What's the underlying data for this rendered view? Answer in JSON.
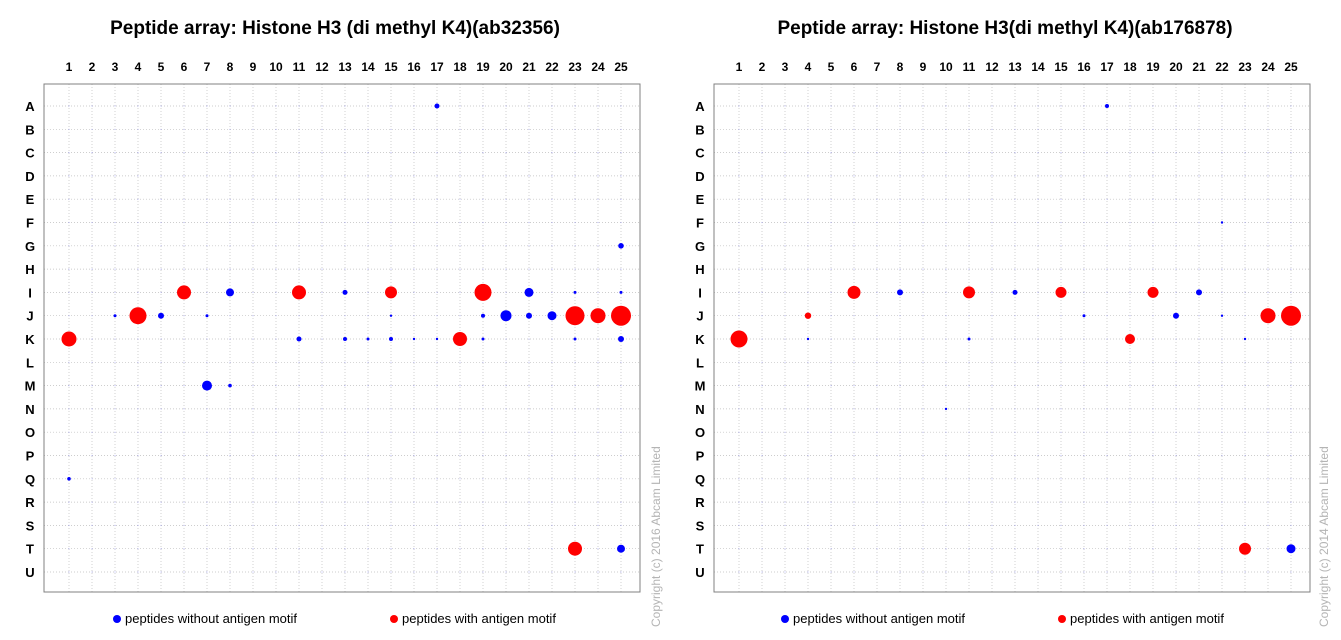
{
  "legend": {
    "without": "peptides without antigen motif",
    "with": "peptides with antigen motif"
  },
  "colors": {
    "without": "#0000ff",
    "with": "#ff0000",
    "grid": "#bdbdbd"
  },
  "copyrights": [
    "Copyright (c) 2016 Abcam Limited",
    "Copyright (c) 2014 Abcam Limited"
  ],
  "chart_data": [
    {
      "type": "scatter",
      "title": "Peptide array: Histone H3 (di methyl K4)(ab32356)",
      "x": [
        "1",
        "2",
        "3",
        "4",
        "5",
        "6",
        "7",
        "8",
        "9",
        "10",
        "11",
        "12",
        "13",
        "14",
        "15",
        "16",
        "17",
        "18",
        "19",
        "20",
        "21",
        "22",
        "23",
        "24",
        "25"
      ],
      "y": [
        "A",
        "B",
        "C",
        "D",
        "E",
        "F",
        "G",
        "H",
        "I",
        "J",
        "K",
        "L",
        "M",
        "N",
        "O",
        "P",
        "Q",
        "R",
        "S",
        "T",
        "U"
      ],
      "grid": true,
      "legend_position": "bottom",
      "series": [
        {
          "name": "peptides without antigen motif",
          "points": [
            {
              "col": 17,
              "row": "A",
              "size": 2.5
            },
            {
              "col": 8,
              "row": "I",
              "size": 4
            },
            {
              "col": 13,
              "row": "I",
              "size": 2.5
            },
            {
              "col": 21,
              "row": "I",
              "size": 4.5
            },
            {
              "col": 25,
              "row": "I",
              "size": 1.5
            },
            {
              "col": 23,
              "row": "I",
              "size": 1.5
            },
            {
              "col": 3,
              "row": "J",
              "size": 1.5
            },
            {
              "col": 5,
              "row": "J",
              "size": 3
            },
            {
              "col": 7,
              "row": "J",
              "size": 1.5
            },
            {
              "col": 19,
              "row": "J",
              "size": 2
            },
            {
              "col": 20,
              "row": "J",
              "size": 5.5
            },
            {
              "col": 21,
              "row": "J",
              "size": 3
            },
            {
              "col": 22,
              "row": "J",
              "size": 4.5
            },
            {
              "col": 15,
              "row": "J",
              "size": 1.2
            },
            {
              "col": 11,
              "row": "K",
              "size": 2.5
            },
            {
              "col": 13,
              "row": "K",
              "size": 2
            },
            {
              "col": 14,
              "row": "K",
              "size": 1.5
            },
            {
              "col": 15,
              "row": "K",
              "size": 2
            },
            {
              "col": 16,
              "row": "K",
              "size": 1.2
            },
            {
              "col": 17,
              "row": "K",
              "size": 1.2
            },
            {
              "col": 19,
              "row": "K",
              "size": 1.5
            },
            {
              "col": 23,
              "row": "K",
              "size": 1.5
            },
            {
              "col": 25,
              "row": "K",
              "size": 3
            },
            {
              "col": 7,
              "row": "M",
              "size": 5
            },
            {
              "col": 8,
              "row": "M",
              "size": 1.8
            },
            {
              "col": 1,
              "row": "Q",
              "size": 1.8
            },
            {
              "col": 25,
              "row": "G",
              "size": 2.8
            },
            {
              "col": 25,
              "row": "T",
              "size": 4
            }
          ]
        },
        {
          "name": "peptides with antigen motif",
          "points": [
            {
              "col": 6,
              "row": "I",
              "size": 7
            },
            {
              "col": 11,
              "row": "I",
              "size": 7
            },
            {
              "col": 15,
              "row": "I",
              "size": 6
            },
            {
              "col": 19,
              "row": "I",
              "size": 8.5
            },
            {
              "col": 4,
              "row": "J",
              "size": 8.5
            },
            {
              "col": 23,
              "row": "J",
              "size": 9.5
            },
            {
              "col": 24,
              "row": "J",
              "size": 7.5
            },
            {
              "col": 25,
              "row": "J",
              "size": 10
            },
            {
              "col": 1,
              "row": "K",
              "size": 7.5
            },
            {
              "col": 18,
              "row": "K",
              "size": 7
            },
            {
              "col": 23,
              "row": "T",
              "size": 7
            }
          ]
        }
      ]
    },
    {
      "type": "scatter",
      "title": "Peptide array: Histone H3(di methyl K4)(ab176878)",
      "x": [
        "1",
        "2",
        "3",
        "4",
        "5",
        "6",
        "7",
        "8",
        "9",
        "10",
        "11",
        "12",
        "13",
        "14",
        "15",
        "16",
        "17",
        "18",
        "19",
        "20",
        "21",
        "22",
        "23",
        "24",
        "25"
      ],
      "y": [
        "A",
        "B",
        "C",
        "D",
        "E",
        "F",
        "G",
        "H",
        "I",
        "J",
        "K",
        "L",
        "M",
        "N",
        "O",
        "P",
        "Q",
        "R",
        "S",
        "T",
        "U"
      ],
      "grid": true,
      "legend_position": "bottom",
      "series": [
        {
          "name": "peptides without antigen motif",
          "points": [
            {
              "col": 17,
              "row": "A",
              "size": 2
            },
            {
              "col": 8,
              "row": "I",
              "size": 3
            },
            {
              "col": 13,
              "row": "I",
              "size": 2.5
            },
            {
              "col": 21,
              "row": "I",
              "size": 3
            },
            {
              "col": 20,
              "row": "J",
              "size": 3
            },
            {
              "col": 16,
              "row": "J",
              "size": 1.5
            },
            {
              "col": 22,
              "row": "J",
              "size": 1.2
            },
            {
              "col": 11,
              "row": "K",
              "size": 1.5
            },
            {
              "col": 4,
              "row": "K",
              "size": 1.2
            },
            {
              "col": 23,
              "row": "K",
              "size": 1.2
            },
            {
              "col": 22,
              "row": "F",
              "size": 1.2
            },
            {
              "col": 10,
              "row": "N",
              "size": 1.2
            },
            {
              "col": 25,
              "row": "T",
              "size": 4.5
            }
          ]
        },
        {
          "name": "peptides with antigen motif",
          "points": [
            {
              "col": 6,
              "row": "I",
              "size": 6.5
            },
            {
              "col": 11,
              "row": "I",
              "size": 6
            },
            {
              "col": 15,
              "row": "I",
              "size": 5.5
            },
            {
              "col": 19,
              "row": "I",
              "size": 5.5
            },
            {
              "col": 4,
              "row": "J",
              "size": 3.2
            },
            {
              "col": 24,
              "row": "J",
              "size": 7.5
            },
            {
              "col": 25,
              "row": "J",
              "size": 10
            },
            {
              "col": 1,
              "row": "K",
              "size": 8.5
            },
            {
              "col": 18,
              "row": "K",
              "size": 5
            },
            {
              "col": 23,
              "row": "T",
              "size": 6
            }
          ]
        }
      ]
    }
  ]
}
